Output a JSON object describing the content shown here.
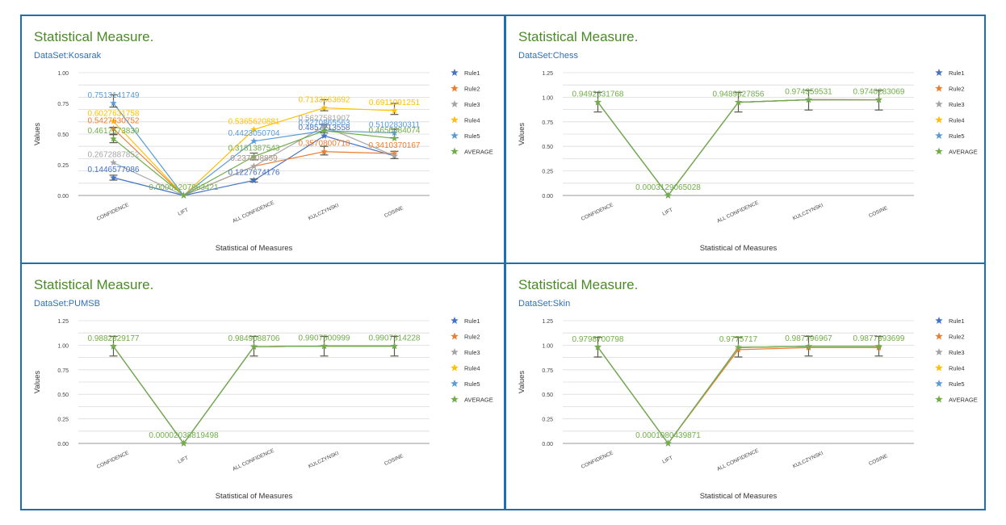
{
  "colors": {
    "Rule1": "#4472c4",
    "Rule2": "#ed7d31",
    "Rule3": "#a5a5a5",
    "Rule4": "#ffc000",
    "Rule5": "#5b9bd5",
    "AVERAGE": "#70ad47",
    "border": "#1e6fb0"
  },
  "legend_icon": "star-icon",
  "chart_data": [
    {
      "type": "line",
      "title": "Statistical Measure.",
      "subtitle": "DataSet:Kosarak",
      "xlabel": "Statistical of Measures",
      "ylabel": "Values",
      "ylim": [
        0,
        1
      ],
      "yticks": [
        "0.00",
        "0.25",
        "0.50",
        "0.75",
        "1.00"
      ],
      "grid": true,
      "legend": "right",
      "categories": [
        "CONFIDENCE",
        "LIFT",
        "ALL CONFIDENCE",
        "KULCZYNSKI",
        "COSINE"
      ],
      "series": [
        {
          "name": "Rule1",
          "values": [
            0.1446577086,
            0.0,
            0.1227674176,
            0.4857213558,
            0.3216126787
          ],
          "labels": [
            "0.1446577086",
            "",
            "0.1227674176",
            "0.4857213558",
            ""
          ]
        },
        {
          "name": "Rule2",
          "values": [
            0.5427630752,
            0.0,
            0.237808859,
            0.3570800718,
            0.3410370167
          ],
          "labels": [
            "0.5427630752",
            "",
            "0.237808859",
            "0.3570800718",
            "0.3410370167"
          ]
        },
        {
          "name": "Rule3",
          "values": [
            0.2672887852,
            0.0,
            0.237808859,
            0.5627581907,
            0.3216126787
          ],
          "labels": [
            "0.2672887852",
            "",
            "0.237808859",
            "0.5627581907",
            ""
          ]
        },
        {
          "name": "Rule4",
          "values": [
            0.6027631758,
            0.0,
            0.5365620881,
            0.7133663692,
            0.6911091251
          ],
          "labels": [
            "0.6027631758",
            "",
            "0.5365620881",
            "0.7133663692",
            "0.6911091251"
          ]
        },
        {
          "name": "Rule5",
          "values": [
            0.7513141749,
            0.0,
            0.4423050704,
            0.5270865563,
            0.5102830311
          ],
          "labels": [
            "0.7513141749",
            "",
            "0.4423050704",
            "0.5270865563",
            "0.5102830311"
          ]
        },
        {
          "name": "AVERAGE",
          "values": [
            0.4617573839,
            1.207963421e-05,
            0.3181387543,
            0.5270865563,
            0.4650384074
          ],
          "labels": [
            "0.4617573839",
            "0.00001207963421",
            "0.3181387543",
            "",
            "0.4650384074"
          ]
        }
      ],
      "error_bars": [
        {
          "series": "Rule1",
          "index": 0,
          "value": 0.1446577086,
          "low": 0.125,
          "high": 0.165
        },
        {
          "series": "Rule5",
          "index": 0,
          "value": 0.7513141749,
          "low": 0.72,
          "high": 0.82
        },
        {
          "series": "AVERAGE",
          "index": 0,
          "value": 0.4617573839,
          "low": 0.43,
          "high": 0.495
        },
        {
          "series": "Rule2",
          "index": 0,
          "value": 0.5427630752,
          "low": 0.5,
          "high": 0.555
        },
        {
          "series": "AVERAGE",
          "index": 2,
          "value": 0.3181387543,
          "low": 0.29,
          "high": 0.345
        },
        {
          "series": "Rule1",
          "index": 2,
          "value": 0.1227674176,
          "low": 0.11,
          "high": 0.135
        },
        {
          "series": "Rule4",
          "index": 3,
          "value": 0.7133663692,
          "low": 0.69,
          "high": 0.78
        },
        {
          "series": "AVERAGE",
          "index": 3,
          "value": 0.5270865563,
          "low": 0.51,
          "high": 0.58
        },
        {
          "series": "Rule2",
          "index": 3,
          "value": 0.3570800718,
          "low": 0.33,
          "high": 0.4
        },
        {
          "series": "Rule4",
          "index": 4,
          "value": 0.6911091251,
          "low": 0.66,
          "high": 0.75
        },
        {
          "series": "Rule5",
          "index": 4,
          "value": 0.5102830311,
          "low": 0.47,
          "high": 0.54
        },
        {
          "series": "Rule2",
          "index": 4,
          "value": 0.3410370167,
          "low": 0.3,
          "high": 0.36
        }
      ]
    },
    {
      "type": "line",
      "title": "Statistical Measure.",
      "subtitle": "DataSet:Chess",
      "xlabel": "Statistical of Measures",
      "ylabel": "Values",
      "ylim": [
        0,
        1.25
      ],
      "yticks": [
        "0.00",
        "0.25",
        "0.50",
        "0.75",
        "1.00",
        "1.25"
      ],
      "grid": true,
      "legend": "right",
      "categories": [
        "CONFIDENCE",
        "LIFT",
        "ALL CONFIDENCE",
        "KULCZYNSKI",
        "COSINE"
      ],
      "series": [
        {
          "name": "Rule1",
          "values": [
            0.9492331768,
            0.0,
            0.9489827856,
            0.974359531,
            0.9740283069
          ],
          "labels": [
            "",
            "",
            "",
            "",
            ""
          ]
        },
        {
          "name": "Rule2",
          "values": [
            0.9492331768,
            0.0,
            0.9489827856,
            0.974359531,
            0.9740283069
          ],
          "labels": [
            "",
            "",
            "",
            "",
            ""
          ]
        },
        {
          "name": "Rule3",
          "values": [
            0.9492331768,
            0.0,
            0.9489827856,
            0.974359531,
            0.9740283069
          ],
          "labels": [
            "",
            "",
            "",
            "",
            ""
          ]
        },
        {
          "name": "Rule4",
          "values": [
            0.9492331768,
            0.0,
            0.9489827856,
            0.974359531,
            0.9740283069
          ],
          "labels": [
            "",
            "",
            "",
            "",
            ""
          ]
        },
        {
          "name": "Rule5",
          "values": [
            0.9492331768,
            0.0,
            0.9489827856,
            0.974359531,
            0.9740283069
          ],
          "labels": [
            "",
            "",
            "",
            "",
            ""
          ]
        },
        {
          "name": "AVERAGE",
          "values": [
            0.9492331768,
            0.0003129065028,
            0.9489827856,
            0.974359531,
            0.9740283069
          ],
          "labels": [
            "0.9492331768",
            "0.0003129065028",
            "0.9489827856",
            "0.974359531",
            "0.9740283069"
          ]
        }
      ],
      "error_bars": [
        {
          "series": "AVERAGE",
          "index": 0,
          "value": 0.9492331768,
          "low": 0.85,
          "high": 1.05
        },
        {
          "series": "AVERAGE",
          "index": 2,
          "value": 0.9489827856,
          "low": 0.85,
          "high": 1.05
        },
        {
          "series": "AVERAGE",
          "index": 3,
          "value": 0.974359531,
          "low": 0.87,
          "high": 1.07
        },
        {
          "series": "AVERAGE",
          "index": 4,
          "value": 0.9740283069,
          "low": 0.87,
          "high": 1.07
        }
      ]
    },
    {
      "type": "line",
      "title": "Statistical Measure.",
      "subtitle": "DataSet:PUMSB",
      "xlabel": "Statistical of Measures",
      "ylabel": "Values",
      "ylim": [
        0,
        1.25
      ],
      "yticks": [
        "0.00",
        "0.25",
        "0.50",
        "0.75",
        "1.00",
        "1.25"
      ],
      "grid": true,
      "legend": "right",
      "categories": [
        "CONFIDENCE",
        "LIFT",
        "ALL CONFIDENCE",
        "KULCZYNSKI",
        "COSINE"
      ],
      "series": [
        {
          "name": "Rule1",
          "values": [
            0.9882829177,
            0.0,
            0.9849088706,
            0.9907500999,
            0.9907314228
          ],
          "labels": [
            "",
            "",
            "",
            "",
            ""
          ]
        },
        {
          "name": "Rule2",
          "values": [
            0.9882829177,
            0.0,
            0.9849088706,
            0.9907500999,
            0.9907314228
          ],
          "labels": [
            "",
            "",
            "",
            "",
            ""
          ]
        },
        {
          "name": "Rule3",
          "values": [
            0.9882829177,
            0.0,
            0.9849088706,
            0.9907500999,
            0.9907314228
          ],
          "labels": [
            "",
            "",
            "",
            "",
            ""
          ]
        },
        {
          "name": "Rule4",
          "values": [
            0.9882829177,
            0.0,
            0.9849088706,
            0.9907500999,
            0.9907314228
          ],
          "labels": [
            "",
            "",
            "",
            "",
            ""
          ]
        },
        {
          "name": "Rule5",
          "values": [
            0.9882829177,
            0.0,
            0.9849088706,
            0.9907500999,
            0.9907314228
          ],
          "labels": [
            "",
            "",
            "",
            "",
            ""
          ]
        },
        {
          "name": "AVERAGE",
          "values": [
            0.9882829177,
            2.038819498e-05,
            0.9849088706,
            0.9907500999,
            0.9907314228
          ],
          "labels": [
            "0.9882829177",
            "0.00002038819498",
            "0.9849088706",
            "0.9907500999",
            "0.9907314228"
          ]
        }
      ],
      "error_bars": [
        {
          "series": "AVERAGE",
          "index": 0,
          "value": 0.9882829177,
          "low": 0.89,
          "high": 1.09
        },
        {
          "series": "AVERAGE",
          "index": 2,
          "value": 0.9849088706,
          "low": 0.89,
          "high": 1.09
        },
        {
          "series": "AVERAGE",
          "index": 3,
          "value": 0.9907500999,
          "low": 0.89,
          "high": 1.09
        },
        {
          "series": "AVERAGE",
          "index": 4,
          "value": 0.9907314228,
          "low": 0.89,
          "high": 1.09
        }
      ]
    },
    {
      "type": "line",
      "title": "Statistical Measure.",
      "subtitle": "DataSet:Skin",
      "xlabel": "Statistical of Measures",
      "ylabel": "Values",
      "ylim": [
        0,
        1.25
      ],
      "yticks": [
        "0.00",
        "0.25",
        "0.50",
        "0.75",
        "1.00",
        "1.25"
      ],
      "grid": true,
      "legend": "right",
      "categories": [
        "CONFIDENCE",
        "LIFT",
        "ALL CONFIDENCE",
        "KULCZYNSKI",
        "COSINE"
      ],
      "series": [
        {
          "name": "Rule1",
          "values": [
            0.9798700798,
            0.0,
            0.9775717,
            0.987796967,
            0.9877393699
          ],
          "labels": [
            "",
            "",
            "",
            "",
            ""
          ]
        },
        {
          "name": "Rule2",
          "values": [
            0.9798700798,
            0.0,
            0.955,
            0.975,
            0.975
          ],
          "labels": [
            "",
            "",
            "",
            "",
            ""
          ]
        },
        {
          "name": "Rule3",
          "values": [
            0.9798700798,
            0.0,
            0.9775717,
            0.987796967,
            0.9877393699
          ],
          "labels": [
            "",
            "",
            "",
            "",
            ""
          ]
        },
        {
          "name": "Rule4",
          "values": [
            0.9798700798,
            0.0,
            0.9775717,
            0.987796967,
            0.9877393699
          ],
          "labels": [
            "",
            "",
            "",
            "",
            ""
          ]
        },
        {
          "name": "Rule5",
          "values": [
            0.9798700798,
            0.0,
            0.9775717,
            0.987796967,
            0.9877393699
          ],
          "labels": [
            "",
            "",
            "",
            "",
            ""
          ]
        },
        {
          "name": "AVERAGE",
          "values": [
            0.9798700798,
            0.0001080439871,
            0.9775717,
            0.987796967,
            0.9877393699
          ],
          "labels": [
            "0.9798700798",
            "0.0001080439871",
            "0.9775717",
            "0.987796967",
            "0.9877393699"
          ]
        }
      ],
      "error_bars": [
        {
          "series": "AVERAGE",
          "index": 0,
          "value": 0.9798700798,
          "low": 0.88,
          "high": 1.08
        },
        {
          "series": "AVERAGE",
          "index": 2,
          "value": 0.9775717,
          "low": 0.88,
          "high": 1.08
        },
        {
          "series": "AVERAGE",
          "index": 3,
          "value": 0.987796967,
          "low": 0.89,
          "high": 1.09
        },
        {
          "series": "AVERAGE",
          "index": 4,
          "value": 0.9877393699,
          "low": 0.89,
          "high": 1.09
        }
      ]
    }
  ]
}
